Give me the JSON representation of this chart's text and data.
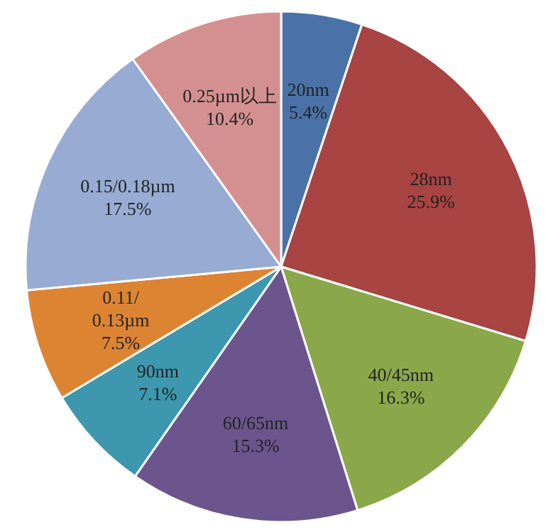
{
  "chart_data": {
    "type": "pie",
    "categories": [
      "20nm",
      "28nm",
      "40/45nm",
      "60/65nm",
      "90nm",
      "0.11/0.13µm",
      "0.15/0.18µm",
      "0.25µm以上"
    ],
    "values": [
      5.4,
      25.9,
      16.3,
      15.3,
      7.1,
      7.5,
      17.5,
      10.4
    ],
    "colors": [
      "#4a72a8",
      "#a84442",
      "#8aa84a",
      "#6c558c",
      "#3d97ae",
      "#dd8433",
      "#97abd3",
      "#d49090"
    ],
    "value_labels": [
      "5.4%",
      "25.9%",
      "16.3%",
      "15.3%",
      "7.1%",
      "7.5%",
      "17.5%",
      "10.4%"
    ]
  }
}
